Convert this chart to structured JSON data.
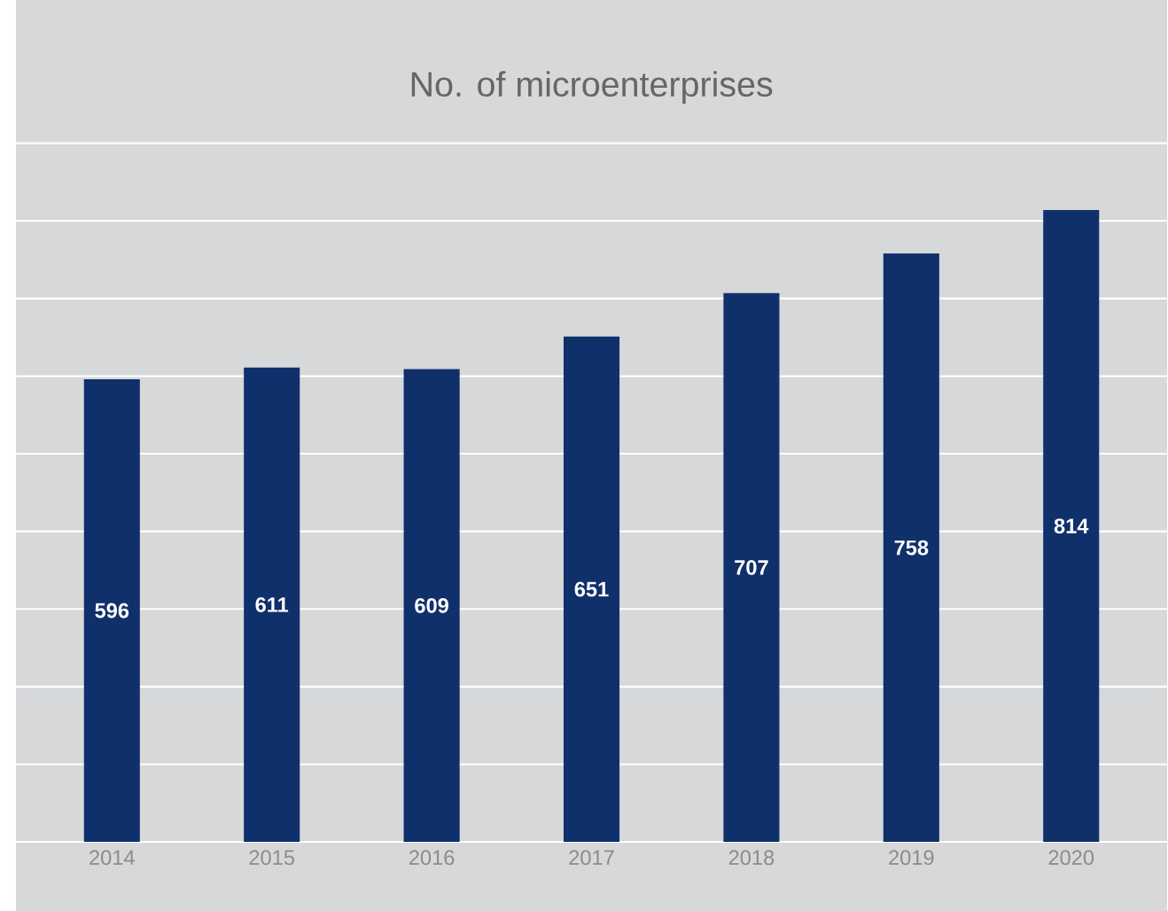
{
  "chart_data": {
    "type": "bar",
    "title": "No. of microenterprises",
    "categories": [
      "2014",
      "2015",
      "2016",
      "2017",
      "2018",
      "2019",
      "2020"
    ],
    "values": [
      596,
      611,
      609,
      651,
      707,
      758,
      814
    ],
    "color": "#10306b",
    "ylim": [
      0,
      900
    ],
    "yticks": [
      {
        "value": 0,
        "label": null
      },
      {
        "value": 100,
        "label": null
      },
      {
        "value": 200,
        "label": null
      },
      {
        "value": 300,
        "label": null
      },
      {
        "value": 400,
        "label": null
      },
      {
        "value": 500,
        "label": null
      },
      {
        "value": 600,
        "label": null
      },
      {
        "value": 700,
        "label": null
      },
      {
        "value": 800,
        "label": null
      },
      {
        "value": 900,
        "label": null
      }
    ],
    "tick_labels": "x",
    "grid": "y",
    "data_labels": true
  }
}
